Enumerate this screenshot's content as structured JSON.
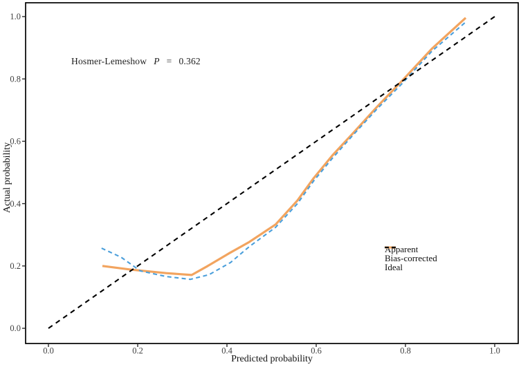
{
  "annotation": {
    "prefix": "Hosmer-Lemeshow",
    "stat": "P",
    "eq": "=",
    "value": "0.362"
  },
  "legend": {
    "items": [
      {
        "label": "Apparent",
        "color": "#F2A45F",
        "style": "solid"
      },
      {
        "label": "Bias-corrected",
        "color": "#4B9FDB",
        "style": "dashed"
      },
      {
        "label": "Ideal",
        "color": "#000000",
        "style": "dashed"
      }
    ]
  },
  "colors": {
    "apparent": "#F2A45F",
    "bias_corrected": "#4B9FDB",
    "ideal": "#000000",
    "tick_label": "#3f3f3f",
    "spine": "#000000"
  },
  "chart_data": {
    "type": "line",
    "title": "",
    "xlabel": "Predicted probability",
    "ylabel": "Actual probability",
    "xlim": [
      0,
      1
    ],
    "ylim": [
      0,
      1
    ],
    "grid": false,
    "legend_position": "right-center",
    "annotation": "Hosmer-Lemeshow P = 0.362",
    "x_ticks": {
      "values": [
        0,
        0.2,
        0.4,
        0.6,
        0.8,
        1.0
      ],
      "labels": [
        "0.0",
        "0.2",
        "0.4",
        "0.6",
        "0.8",
        "1.0"
      ]
    },
    "y_ticks": {
      "values": [
        0,
        0.2,
        0.4,
        0.6,
        0.8,
        1.0
      ],
      "labels": [
        "0.0",
        "0.2",
        "0.4",
        "0.6",
        "0.8",
        "1.0"
      ]
    },
    "series": [
      {
        "name": "Apparent",
        "color": "#F2A45F",
        "style": "solid",
        "points": [
          [
            0.121,
            0.2
          ],
          [
            0.186,
            0.188
          ],
          [
            0.264,
            0.177
          ],
          [
            0.321,
            0.171
          ],
          [
            0.357,
            0.2
          ],
          [
            0.403,
            0.239
          ],
          [
            0.45,
            0.277
          ],
          [
            0.509,
            0.333
          ],
          [
            0.558,
            0.41
          ],
          [
            0.594,
            0.481
          ],
          [
            0.636,
            0.554
          ],
          [
            0.682,
            0.625
          ],
          [
            0.736,
            0.71
          ],
          [
            0.791,
            0.792
          ],
          [
            0.86,
            0.898
          ],
          [
            0.935,
            0.996
          ]
        ]
      },
      {
        "name": "Bias-corrected",
        "color": "#4B9FDB",
        "style": "dashed",
        "points": [
          [
            0.119,
            0.257
          ],
          [
            0.163,
            0.228
          ],
          [
            0.206,
            0.184
          ],
          [
            0.264,
            0.166
          ],
          [
            0.318,
            0.157
          ],
          [
            0.36,
            0.172
          ],
          [
            0.408,
            0.211
          ],
          [
            0.45,
            0.262
          ],
          [
            0.509,
            0.324
          ],
          [
            0.558,
            0.4
          ],
          [
            0.594,
            0.472
          ],
          [
            0.636,
            0.545
          ],
          [
            0.682,
            0.619
          ],
          [
            0.736,
            0.703
          ],
          [
            0.791,
            0.783
          ],
          [
            0.86,
            0.89
          ],
          [
            0.933,
            0.98
          ]
        ]
      },
      {
        "name": "Ideal",
        "color": "#000000",
        "style": "dashed",
        "points": [
          [
            0,
            0
          ],
          [
            1,
            1
          ]
        ]
      }
    ]
  }
}
